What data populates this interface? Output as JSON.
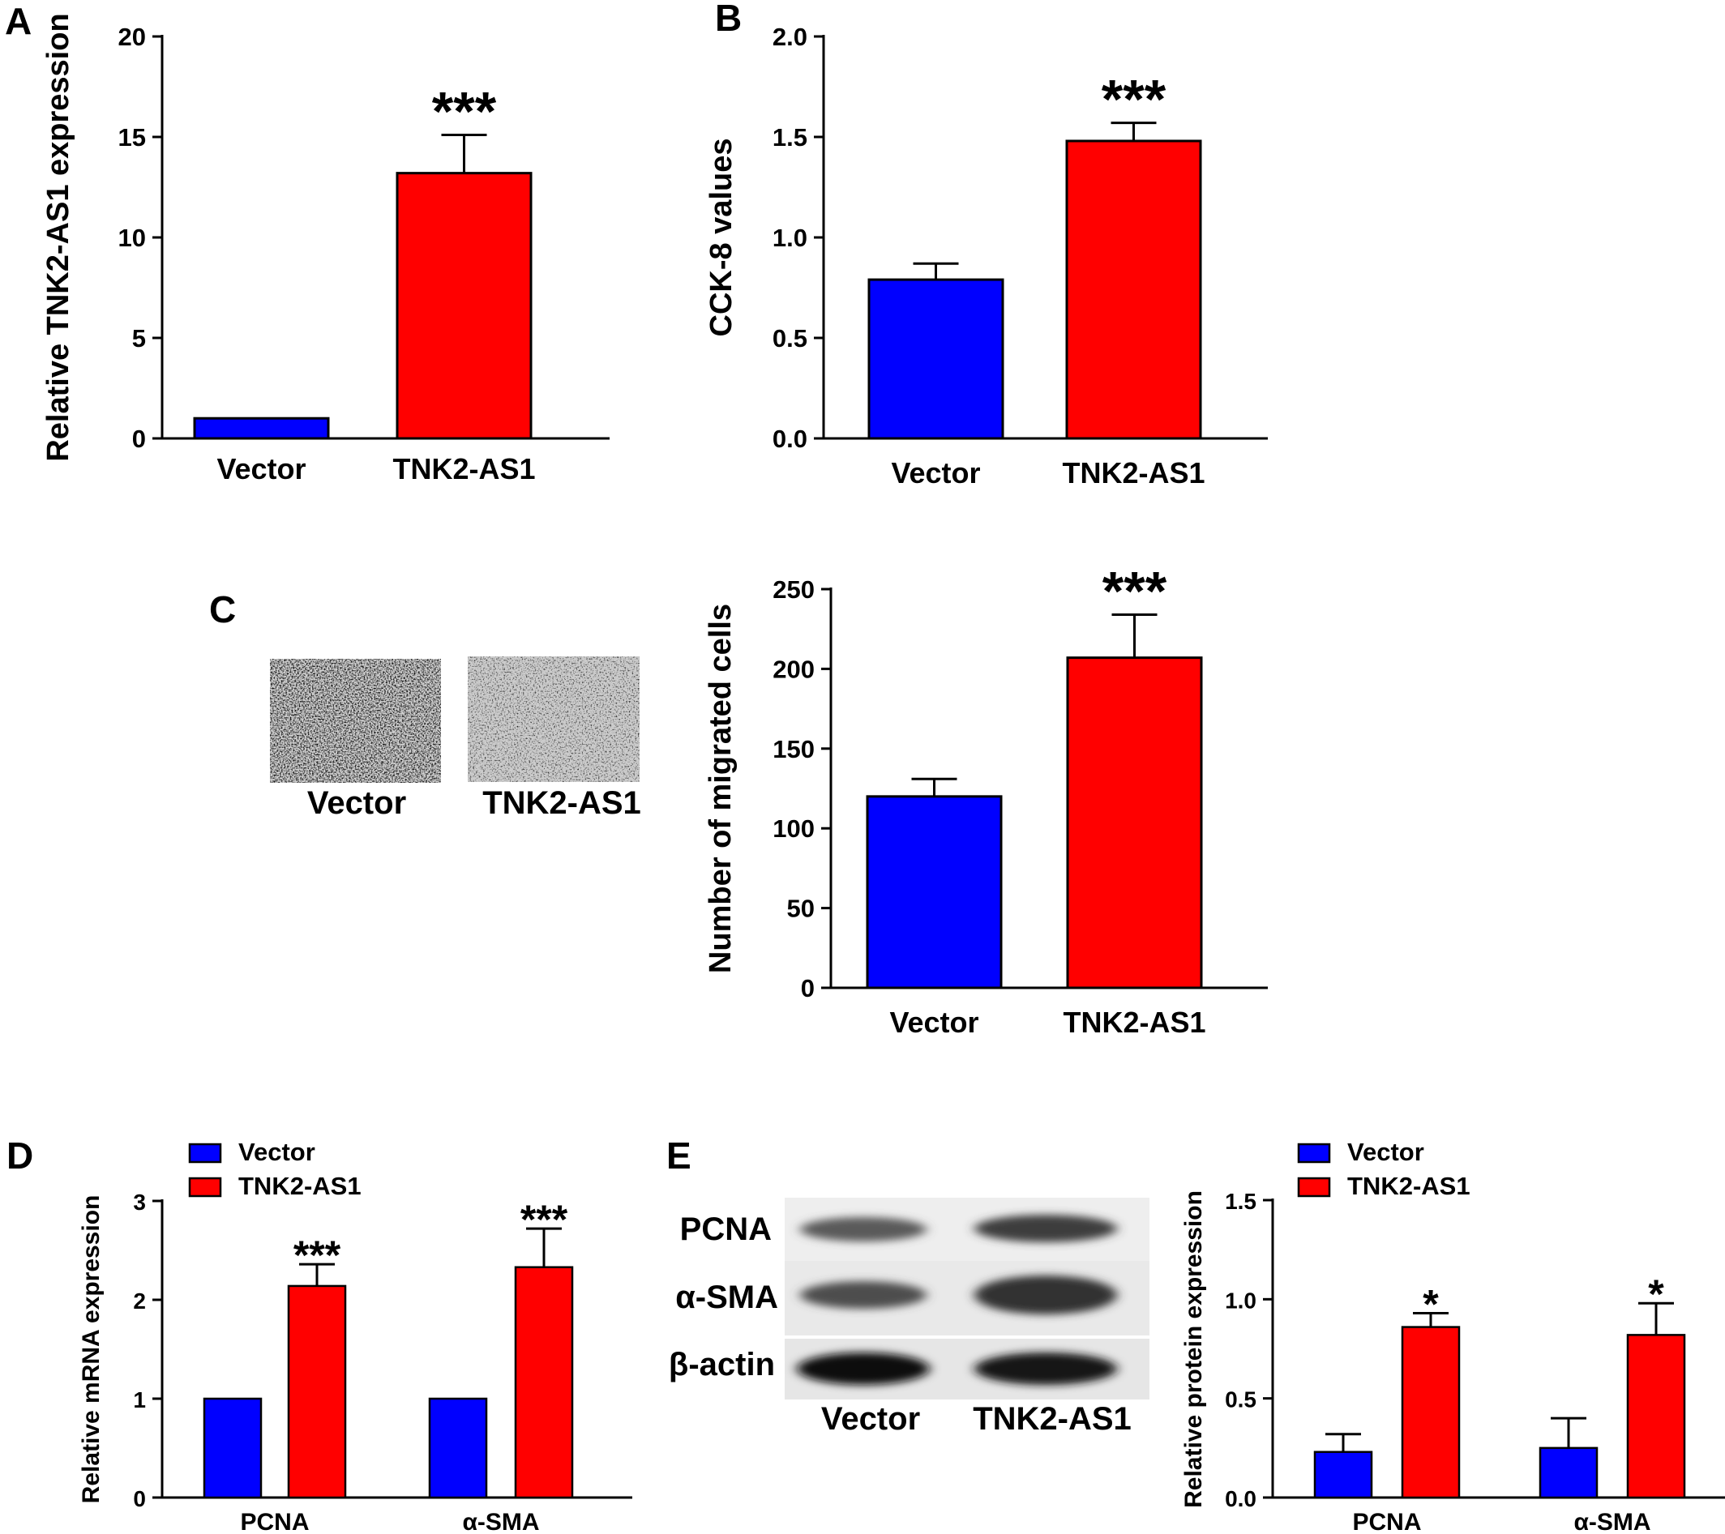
{
  "colors": {
    "vector": "#0000ff",
    "tnk2": "#ff0000",
    "axis": "#000000"
  },
  "panels": {
    "A": "A",
    "B": "B",
    "C": "C",
    "D": "D",
    "E": "E"
  },
  "legend": {
    "vector": "Vector",
    "tnk2": "TNK2-AS1"
  },
  "micrograph_labels": [
    "Vector",
    "TNK2-AS1"
  ],
  "blot": {
    "rows": [
      "PCNA",
      "α-SMA",
      "β-actin"
    ],
    "lanes": [
      "Vector",
      "TNK2-AS1"
    ]
  },
  "chart_data": [
    {
      "id": "A",
      "type": "bar",
      "categories": [
        "Vector",
        "TNK2-AS1"
      ],
      "values": [
        1.0,
        13.2
      ],
      "errors": [
        0,
        1.9
      ],
      "sig": [
        "",
        "***"
      ],
      "ylabel": "Relative TNK2-AS1 expression",
      "ylim": [
        0,
        20
      ],
      "yticks": [
        "0",
        "5",
        "10",
        "15",
        "20"
      ]
    },
    {
      "id": "B",
      "type": "bar",
      "categories": [
        "Vector",
        "TNK2-AS1"
      ],
      "values": [
        0.79,
        1.48
      ],
      "errors": [
        0.08,
        0.09
      ],
      "sig": [
        "",
        "***"
      ],
      "ylabel": "CCK-8 values",
      "ylim": [
        0,
        2.0
      ],
      "yticks": [
        "0.0",
        "0.5",
        "1.0",
        "1.5",
        "2.0"
      ]
    },
    {
      "id": "C",
      "type": "bar",
      "categories": [
        "Vector",
        "TNK2-AS1"
      ],
      "values": [
        120,
        207
      ],
      "errors": [
        11,
        27
      ],
      "sig": [
        "",
        "***"
      ],
      "ylabel": "Number of migrated cells",
      "ylim": [
        0,
        250
      ],
      "yticks": [
        "0",
        "50",
        "100",
        "150",
        "200",
        "250"
      ]
    },
    {
      "id": "D",
      "type": "bar",
      "categories": [
        "PCNA",
        "α-SMA"
      ],
      "series": [
        {
          "name": "Vector",
          "values": [
            1.0,
            1.0
          ],
          "errors": [
            0,
            0
          ]
        },
        {
          "name": "TNK2-AS1",
          "values": [
            2.14,
            2.33
          ],
          "errors": [
            0.22,
            0.39
          ]
        }
      ],
      "sig": [
        "***",
        "***"
      ],
      "ylabel": "Relative mRNA expression",
      "ylim": [
        0,
        3
      ],
      "yticks": [
        "0",
        "1",
        "2",
        "3"
      ],
      "legend": "top-left"
    },
    {
      "id": "E",
      "type": "bar",
      "categories": [
        "PCNA",
        "α-SMA"
      ],
      "series": [
        {
          "name": "Vector",
          "values": [
            0.23,
            0.25
          ],
          "errors": [
            0.09,
            0.15
          ]
        },
        {
          "name": "TNK2-AS1",
          "values": [
            0.86,
            0.82
          ],
          "errors": [
            0.07,
            0.16
          ]
        }
      ],
      "sig": [
        "*",
        "*"
      ],
      "ylabel": "Relative protein expression",
      "ylim": [
        0,
        1.5
      ],
      "yticks": [
        "0.0",
        "0.5",
        "1.0",
        "1.5"
      ],
      "legend": "top-left"
    }
  ]
}
